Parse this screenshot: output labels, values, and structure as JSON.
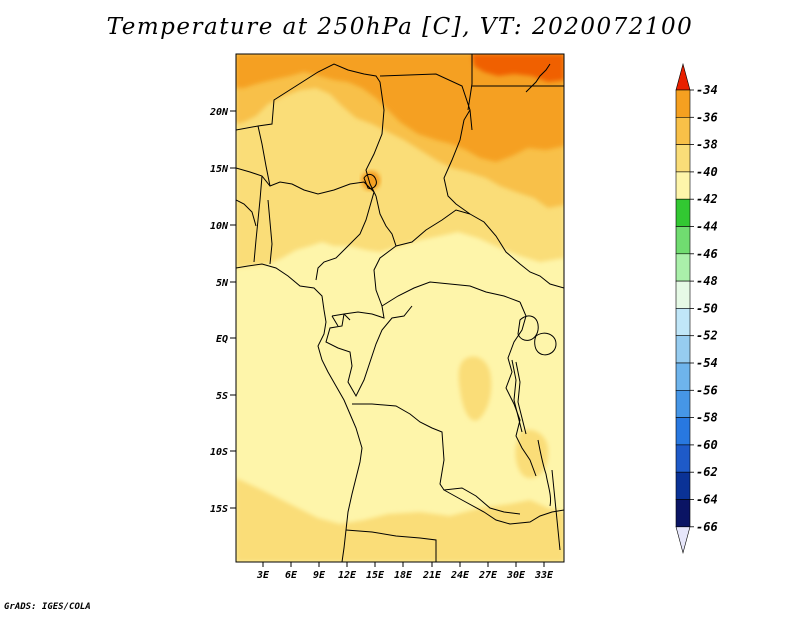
{
  "title": "Temperature at 250hPa [C], VT: 2020072100",
  "credit": "GrADS: IGES/COLA",
  "map": {
    "lat_labels": [
      "20N",
      "15N",
      "10N",
      "5N",
      "EQ",
      "5S",
      "10S",
      "15S"
    ],
    "lon_labels": [
      "3E",
      "6E",
      "9E",
      "12E",
      "15E",
      "18E",
      "21E",
      "24E",
      "27E",
      "30E",
      "33E"
    ],
    "fill_colors": {
      "-34_-36": "#f06000",
      "-36_-38": "#f5a020",
      "-38_-40": "#f8c048",
      "-40_-42": "#fadd78",
      "-42_-44": "#fef5aa"
    }
  },
  "colorbar": {
    "labels": [
      "-34",
      "-36",
      "-38",
      "-40",
      "-42",
      "-44",
      "-46",
      "-48",
      "-50",
      "-52",
      "-54",
      "-56",
      "-58",
      "-60",
      "-62",
      "-64",
      "-66"
    ],
    "colors": [
      "#f06000",
      "#f5a020",
      "#f8c048",
      "#fadd78",
      "#fef5aa",
      "#32c832",
      "#70dc70",
      "#aaf0aa",
      "#e6fae6",
      "#c0e6f8",
      "#96ccf0",
      "#6eb4ec",
      "#4696e6",
      "#2878e0",
      "#1e5ac8",
      "#0a3296",
      "#0a1464"
    ],
    "top_arrow_color": "#e82000",
    "bottom_arrow_color": "#e6e6fa"
  }
}
